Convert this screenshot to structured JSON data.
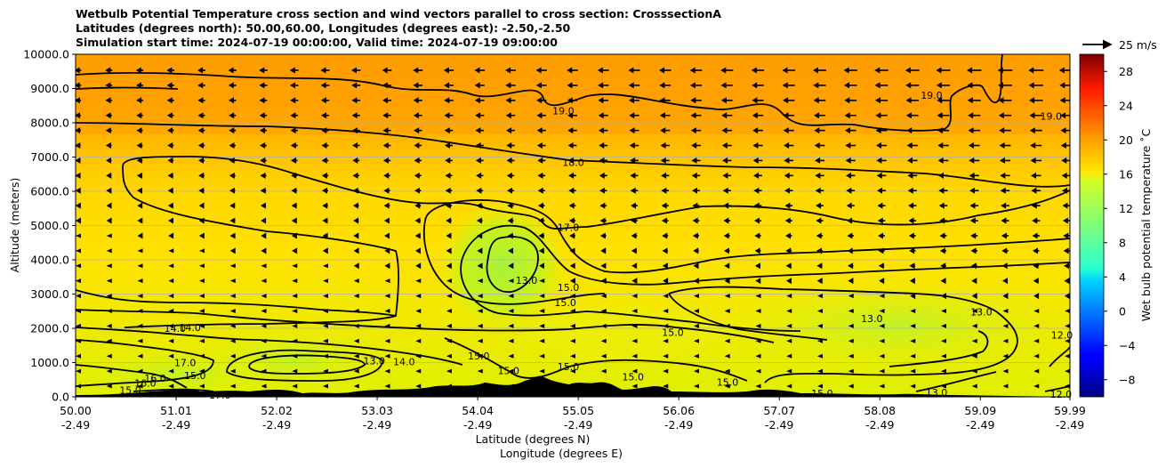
{
  "chart_data": {
    "type": "heatmap",
    "title_lines": [
      "Wetbulb Potential Temperature cross section and wind vectors parallel to cross section: CrosssectionA",
      "Latitudes (degrees north): 50.00,60.00, Longitudes (degrees east): -2.50,-2.50",
      "Simulation start time: 2024-07-19 00:00:00, Valid time: 2024-07-19 09:00:00"
    ],
    "xlabel": "Latitude (degrees N)",
    "xlabel2": "Longitude (degrees E)",
    "ylabel": "Altitude (meters)",
    "x_ticks": [
      {
        "lat": "50.00",
        "lon": "-2.49"
      },
      {
        "lat": "51.01",
        "lon": "-2.49"
      },
      {
        "lat": "52.02",
        "lon": "-2.49"
      },
      {
        "lat": "53.03",
        "lon": "-2.49"
      },
      {
        "lat": "54.04",
        "lon": "-2.49"
      },
      {
        "lat": "55.05",
        "lon": "-2.49"
      },
      {
        "lat": "56.06",
        "lon": "-2.49"
      },
      {
        "lat": "57.07",
        "lon": "-2.49"
      },
      {
        "lat": "58.08",
        "lon": "-2.49"
      },
      {
        "lat": "59.09",
        "lon": "-2.49"
      },
      {
        "lat": "59.99",
        "lon": "-2.49"
      }
    ],
    "xlim": [
      50.0,
      59.99
    ],
    "y_ticks": [
      "0.0",
      "1000.0",
      "2000.0",
      "3000.0",
      "4000.0",
      "5000.0",
      "6000.0",
      "7000.0",
      "8000.0",
      "9000.0",
      "10000.0"
    ],
    "ylim": [
      0,
      10000
    ],
    "grid": "horizontal",
    "colorbar": {
      "label": "Wet bulb potential temperature ˚C",
      "ticks": [
        "−8",
        "−4",
        "0",
        "4",
        "8",
        "12",
        "16",
        "20",
        "24",
        "28"
      ],
      "tick_values": [
        -8,
        -4,
        0,
        4,
        8,
        12,
        16,
        20,
        24,
        28
      ],
      "range": [
        -10,
        30
      ],
      "colormap": "jet"
    },
    "quiver_key": {
      "label": "25 m/s"
    },
    "contour_labels": [
      {
        "text": "19.0",
        "lat": 54.9,
        "alt": 8350
      },
      {
        "text": "19.0",
        "lat": 58.6,
        "alt": 8800
      },
      {
        "text": "19.0",
        "lat": 59.8,
        "alt": 8200
      },
      {
        "text": "18.0",
        "lat": 55.0,
        "alt": 6850
      },
      {
        "text": "17.0",
        "lat": 54.95,
        "alt": 4950
      },
      {
        "text": "13.0",
        "lat": 54.53,
        "alt": 3400
      },
      {
        "text": "15.0",
        "lat": 54.95,
        "alt": 3200
      },
      {
        "text": "15.0",
        "lat": 54.92,
        "alt": 2750
      },
      {
        "text": "15.0",
        "lat": 56.0,
        "alt": 1880
      },
      {
        "text": "15.0",
        "lat": 54.05,
        "alt": 1200
      },
      {
        "text": "15.0",
        "lat": 54.35,
        "alt": 770
      },
      {
        "text": "15.0",
        "lat": 54.95,
        "alt": 880
      },
      {
        "text": "15.0",
        "lat": 55.6,
        "alt": 580
      },
      {
        "text": "15.0",
        "lat": 56.55,
        "alt": 430
      },
      {
        "text": "15.0",
        "lat": 57.5,
        "alt": 100
      },
      {
        "text": "13.0",
        "lat": 58.0,
        "alt": 2280
      },
      {
        "text": "13.0",
        "lat": 59.1,
        "alt": 2480
      },
      {
        "text": "13.0",
        "lat": 58.65,
        "alt": 130
      },
      {
        "text": "12.0",
        "lat": 59.91,
        "alt": 1800
      },
      {
        "text": "12.0",
        "lat": 59.9,
        "alt": 80
      },
      {
        "text": "14.0",
        "lat": 51.0,
        "alt": 2000
      },
      {
        "text": "14.0",
        "lat": 51.15,
        "alt": 2020
      },
      {
        "text": "17.0",
        "lat": 51.1,
        "alt": 1000
      },
      {
        "text": "16.0",
        "lat": 50.8,
        "alt": 550
      },
      {
        "text": "13.0",
        "lat": 53.0,
        "alt": 1050
      },
      {
        "text": "14.0",
        "lat": 53.3,
        "alt": 1020
      },
      {
        "text": "15.0",
        "lat": 51.2,
        "alt": 620
      },
      {
        "text": "15.0",
        "lat": 50.55,
        "alt": 200
      },
      {
        "text": "16.0",
        "lat": 50.7,
        "alt": 400
      },
      {
        "text": "17.0",
        "lat": 51.45,
        "alt": 50
      }
    ]
  }
}
